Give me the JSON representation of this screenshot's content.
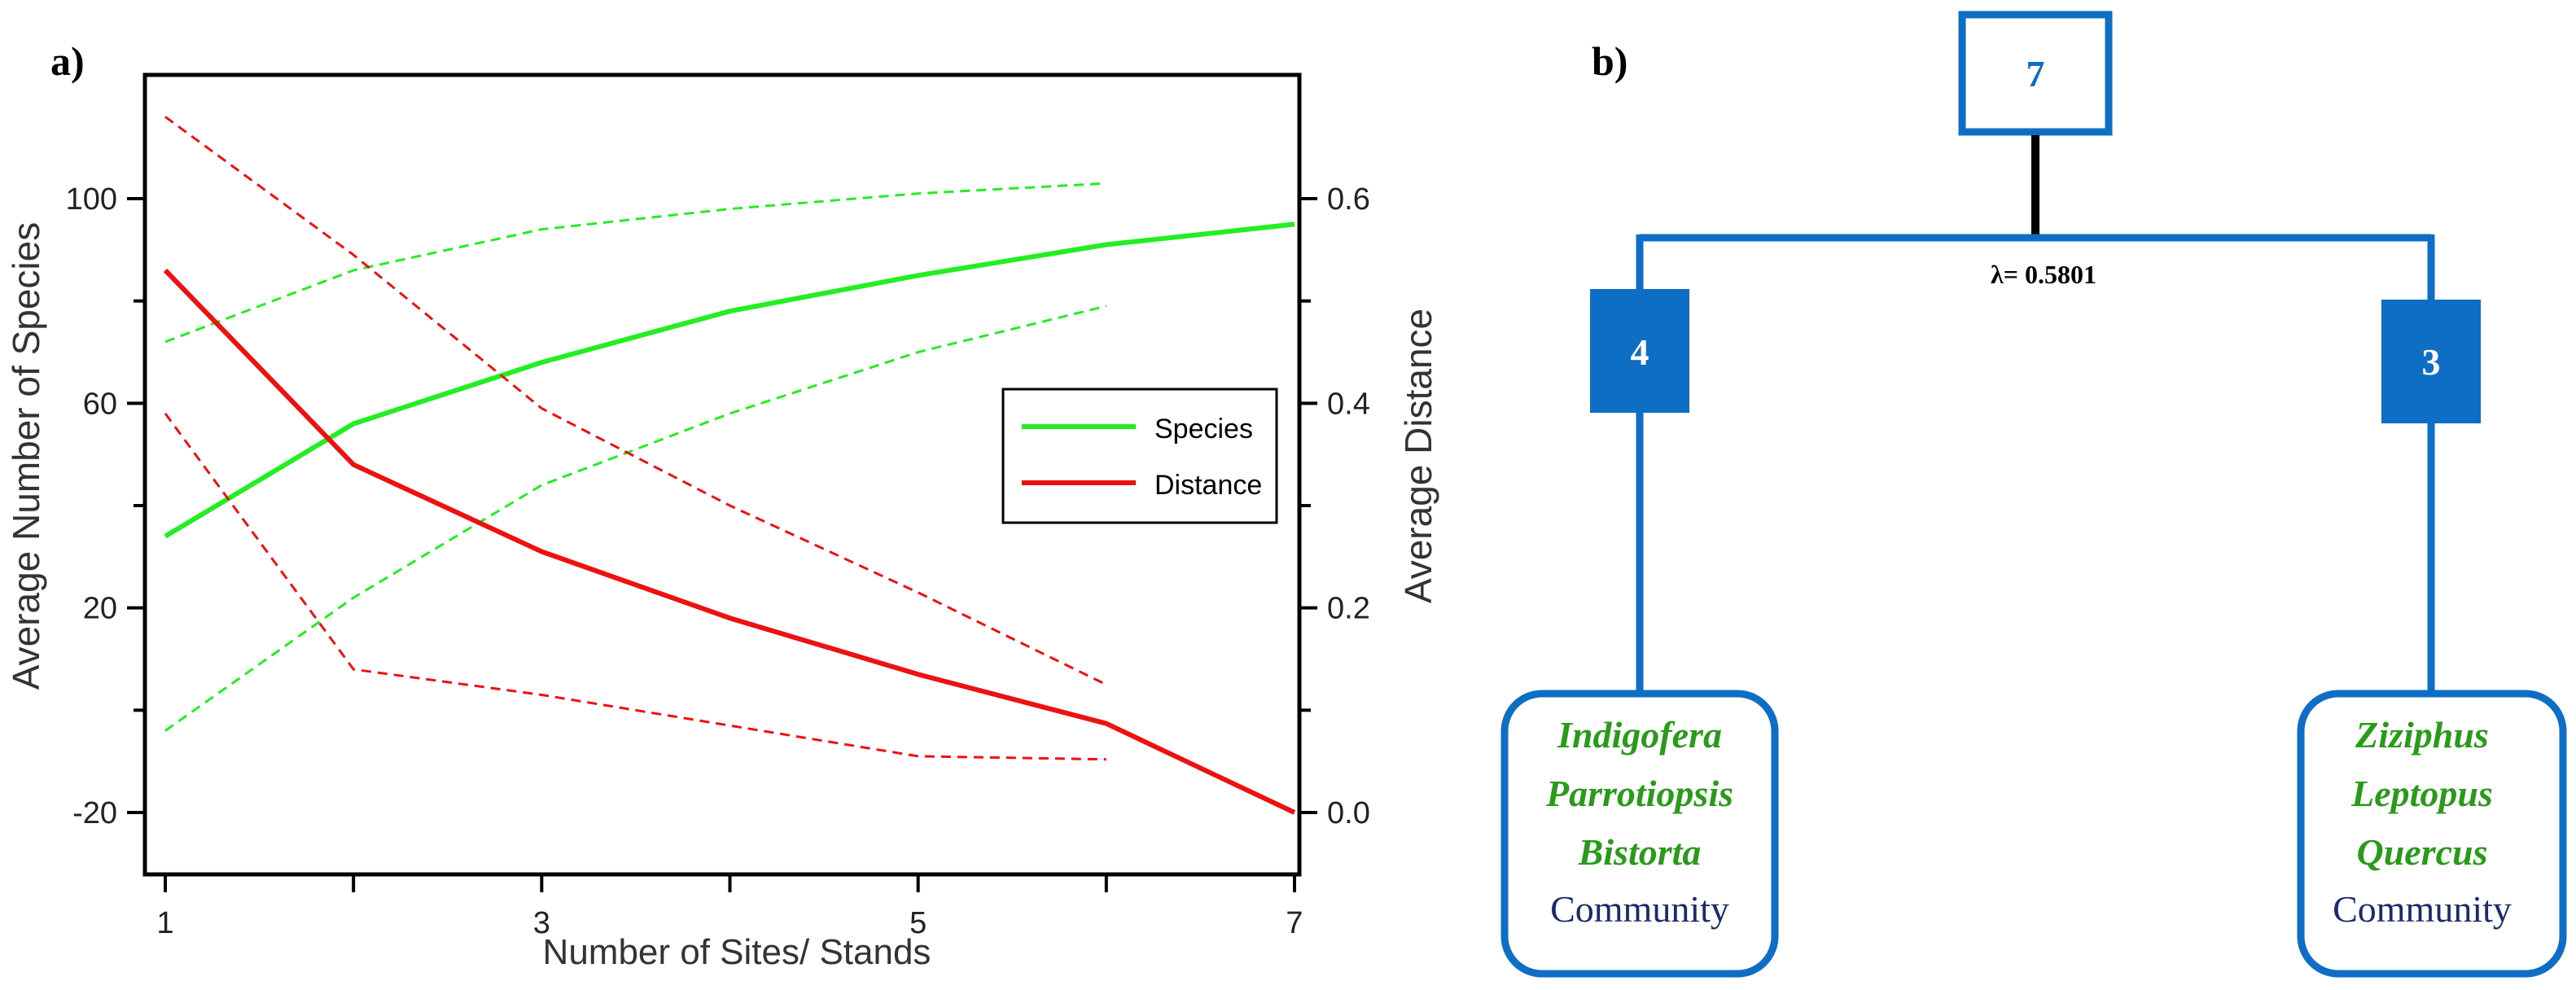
{
  "panel_a": {
    "label": "a)",
    "chart_data": {
      "type": "line",
      "xlabel": "Number of Sites/ Stands",
      "ylabel_left": "Average Number of Species",
      "ylabel_right": "Average Distance",
      "x_ticks": [
        1,
        3,
        5,
        7
      ],
      "y_left_ticks": [
        100,
        60,
        20,
        -20
      ],
      "y_right_ticks": [
        "0.6",
        "0.4",
        "0.2",
        "0.0"
      ],
      "xlim": [
        1,
        7
      ],
      "ylim_left": [
        -20,
        100
      ],
      "ylim_right": [
        0,
        0.6
      ],
      "grid": false,
      "legend_position": "right-middle",
      "series": [
        {
          "name": "Species",
          "axis": "left",
          "style": "solid",
          "color": "#22ee22",
          "x": [
            1,
            2,
            3,
            4,
            5,
            6,
            7
          ],
          "y": [
            34,
            56,
            68,
            78,
            85,
            91,
            95
          ]
        },
        {
          "name": "Species upper 95% CI",
          "axis": "left",
          "style": "dashed",
          "color": "#22ee22",
          "x": [
            1,
            2,
            3,
            4,
            5,
            6
          ],
          "y": [
            72,
            86,
            94,
            98,
            101,
            103
          ]
        },
        {
          "name": "Species lower 95% CI",
          "axis": "left",
          "style": "dashed",
          "color": "#22ee22",
          "x": [
            1,
            2,
            3,
            4,
            5,
            6
          ],
          "y": [
            -4,
            22,
            44,
            58,
            70,
            79
          ]
        },
        {
          "name": "Distance",
          "axis": "right",
          "style": "solid",
          "color": "#ee1111",
          "x": [
            1,
            2,
            3,
            4,
            5,
            6,
            7
          ],
          "y": [
            0.53,
            0.34,
            0.255,
            0.19,
            0.135,
            0.087,
            0.0
          ]
        },
        {
          "name": "Distance upper 95% CI",
          "axis": "right",
          "style": "dashed",
          "color": "#ee1111",
          "x": [
            1,
            2,
            3,
            4,
            5,
            6
          ],
          "y": [
            0.68,
            0.545,
            0.395,
            0.3,
            0.215,
            0.125
          ]
        },
        {
          "name": "Distance lower 95% CI",
          "axis": "right",
          "style": "dashed",
          "color": "#ee1111",
          "x": [
            1,
            2,
            3,
            4,
            5,
            6
          ],
          "y": [
            0.39,
            0.14,
            0.115,
            0.085,
            0.055,
            0.052
          ]
        }
      ],
      "legend": [
        {
          "label": "Species",
          "color": "#22ee22"
        },
        {
          "label": "Distance",
          "color": "#ee1111"
        }
      ]
    }
  },
  "panel_b": {
    "label": "b)",
    "root": {
      "value": "7"
    },
    "lambda_label": "λ= 0.5801",
    "left": {
      "count": "4",
      "species": [
        "Indigofera",
        "Parrotiopsis",
        "Bistorta"
      ],
      "community": "Community"
    },
    "right": {
      "count": "3",
      "species": [
        "Ziziphus",
        "Leptopus",
        "Quercus"
      ],
      "community": "Community"
    },
    "colors": {
      "box": "#0e6ec6",
      "species_text": "#2a9a1a",
      "community_text": "#1a2a6a",
      "stem": "#000000"
    }
  }
}
